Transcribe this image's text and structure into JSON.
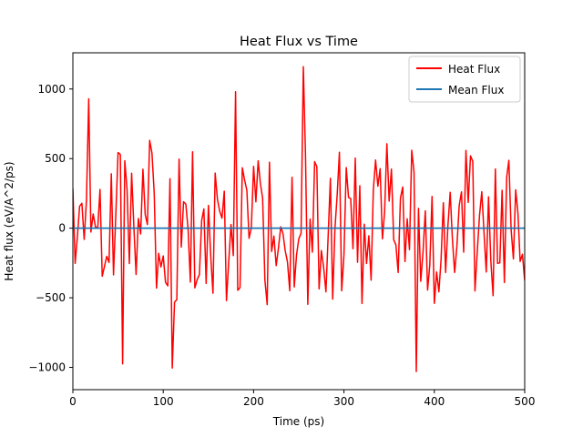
{
  "chart_data": {
    "type": "line",
    "title": "Heat Flux vs Time",
    "xlabel": "Time (ps)",
    "ylabel": "Heat flux (eV/A^2/ps)",
    "xlim": [
      0,
      500
    ],
    "ylim": [
      -1160,
      1260
    ],
    "xticks": [
      0,
      100,
      200,
      300,
      400,
      500
    ],
    "yticks": [
      -1000,
      -500,
      0,
      500,
      1000
    ],
    "xtick_labels": [
      "0",
      "100",
      "200",
      "300",
      "400",
      "500"
    ],
    "ytick_labels": [
      "−1000",
      "−500",
      "0",
      "500",
      "1000"
    ],
    "grid": false,
    "legend_position": "top-right",
    "series": [
      {
        "name": "Heat Flux",
        "color": "#ff0000",
        "sample_step": 2.5,
        "noise": {
          "peak_max": 1160,
          "trough_min": -1030,
          "typical_amplitude": 560,
          "approximate_envelope": true
        },
        "highlight_extrema": [
          {
            "x": 254,
            "y": 1160
          },
          {
            "x": 379,
            "y": -1030
          },
          {
            "x": 111,
            "y": -1005
          },
          {
            "x": 54,
            "y": -975
          },
          {
            "x": 180,
            "y": 980
          },
          {
            "x": 18,
            "y": 930
          }
        ]
      },
      {
        "name": "Mean Flux",
        "color": "#1f77b4",
        "x": [
          0,
          500
        ],
        "y": [
          0,
          0
        ]
      }
    ]
  }
}
